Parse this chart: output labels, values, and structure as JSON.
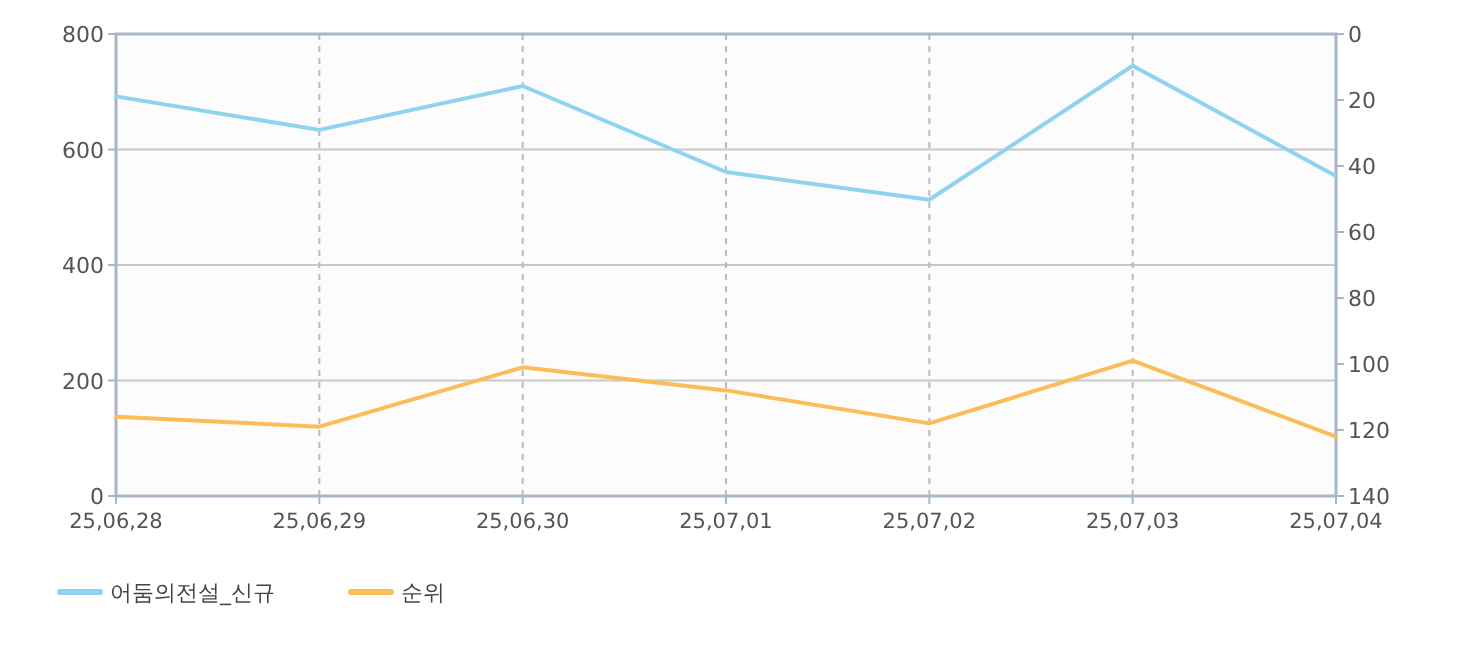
{
  "chart_data": {
    "type": "line",
    "categories": [
      "25,06,28",
      "25,06,29",
      "25,06,30",
      "25,07,01",
      "25,07,02",
      "25,07,03",
      "25,07,04"
    ],
    "series": [
      {
        "name": "어둠의전설_신규",
        "color": "#8fd3f0",
        "values": [
          692,
          634,
          710,
          561,
          513,
          745,
          554
        ]
      },
      {
        "name": "순위",
        "color": "#fbbd5a",
        "axis": "y2",
        "values": [
          116,
          119,
          101,
          108,
          118,
          99,
          122
        ]
      }
    ],
    "ylim": [
      0,
      800
    ],
    "yticks": [
      0,
      200,
      400,
      600,
      800
    ],
    "y2lim": [
      140,
      0
    ],
    "y2ticks": [
      0,
      20,
      40,
      60,
      80,
      100,
      120,
      140
    ],
    "grid": true,
    "legend": "bottom left",
    "marker": "none",
    "line_style": "solid"
  }
}
